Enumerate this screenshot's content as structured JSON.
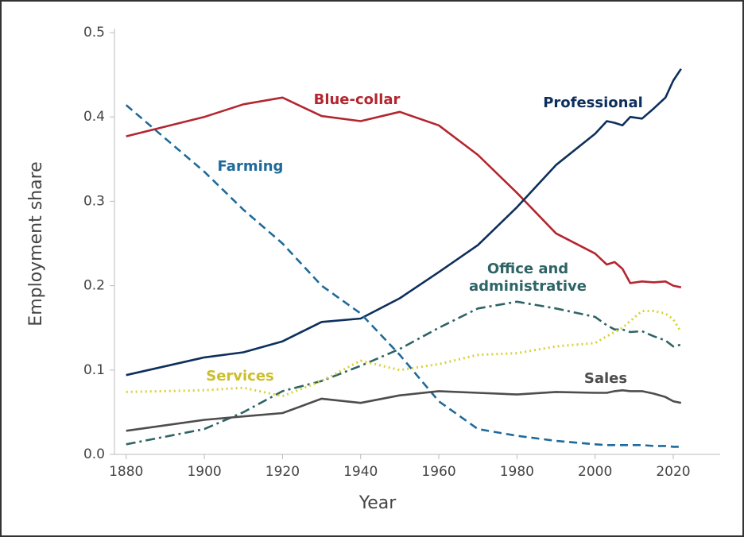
{
  "chart_data": {
    "type": "line",
    "xlabel": "Year",
    "ylabel": "Employment share",
    "x": [
      1880,
      1900,
      1910,
      1920,
      1930,
      1940,
      1950,
      1960,
      1970,
      1980,
      1990,
      2000,
      2003,
      2005,
      2007,
      2009,
      2012,
      2015,
      2018,
      2020,
      2022
    ],
    "series": [
      {
        "name": "Blue-collar",
        "color": "#b3262f",
        "dash": "solid",
        "values": [
          0.377,
          0.4,
          0.415,
          0.423,
          0.401,
          0.395,
          0.406,
          0.39,
          0.355,
          0.31,
          0.262,
          0.238,
          0.225,
          0.228,
          0.22,
          0.203,
          0.205,
          0.204,
          0.205,
          0.2,
          0.198
        ]
      },
      {
        "name": "Professional",
        "color": "#0d2f5c",
        "dash": "solid",
        "values": [
          0.094,
          0.115,
          0.121,
          0.134,
          0.157,
          0.161,
          0.185,
          0.216,
          0.248,
          0.293,
          0.343,
          0.38,
          0.395,
          0.393,
          0.39,
          0.4,
          0.398,
          0.41,
          0.423,
          0.443,
          0.457
        ]
      },
      {
        "name": "Farming",
        "color": "#1f6a9a",
        "dash": "dashed",
        "values": [
          0.414,
          0.335,
          0.29,
          0.25,
          0.2,
          0.167,
          0.118,
          0.063,
          0.03,
          0.022,
          0.016,
          0.012,
          0.011,
          0.011,
          0.011,
          0.011,
          0.011,
          0.01,
          0.01,
          0.009,
          0.009
        ]
      },
      {
        "name": "Office and administrative",
        "color": "#2e6466",
        "dash": "dashdot",
        "values": [
          0.012,
          0.03,
          0.05,
          0.075,
          0.087,
          0.105,
          0.125,
          0.15,
          0.173,
          0.181,
          0.173,
          0.163,
          0.153,
          0.148,
          0.148,
          0.145,
          0.146,
          0.14,
          0.135,
          0.128,
          0.13
        ]
      },
      {
        "name": "Services",
        "color": "#d9d13c",
        "dash": "dotted",
        "values": [
          0.074,
          0.076,
          0.079,
          0.069,
          0.087,
          0.111,
          0.1,
          0.107,
          0.118,
          0.12,
          0.128,
          0.132,
          0.14,
          0.145,
          0.15,
          0.158,
          0.17,
          0.17,
          0.167,
          0.16,
          0.145
        ]
      },
      {
        "name": "Sales",
        "color": "#4d4d4d",
        "dash": "solid",
        "values": [
          0.028,
          0.041,
          0.045,
          0.049,
          0.066,
          0.061,
          0.07,
          0.075,
          0.073,
          0.071,
          0.074,
          0.073,
          0.073,
          0.075,
          0.076,
          0.075,
          0.075,
          0.072,
          0.068,
          0.063,
          0.061
        ]
      }
    ],
    "xlim": [
      1877,
      2032
    ],
    "xticks": [
      1880,
      1900,
      1920,
      1940,
      1960,
      1980,
      2000,
      2020
    ],
    "ylim": [
      0,
      0.5
    ],
    "yticks": [
      {
        "value": 0,
        "label": "0.0"
      },
      0.1,
      0.2,
      0.3,
      0.4,
      0.5
    ],
    "grid": false
  }
}
